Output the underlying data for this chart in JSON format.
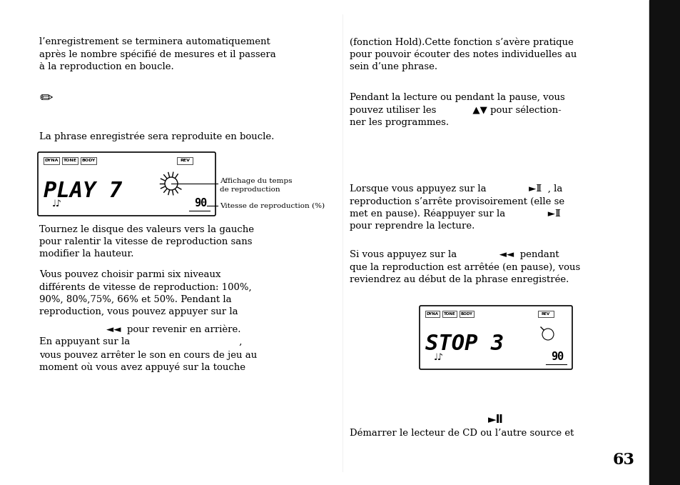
{
  "bg_color": "#ffffff",
  "text_color": "#000000",
  "page_number": "63",
  "sidebar_color": "#111111",
  "figsize": [
    9.54,
    6.79
  ],
  "dpi": 100,
  "left_para1": "l’enregistrement se terminera automatiquement\naprès le nombre spécifié de mesures et il passera\nà la reproduction en boucle.",
  "left_para2": "La phrase enregistrée sera reproduite en boucle.",
  "left_para3a": "Tournez le disque des valeurs vers la gauche\npour ralentir la vitesse de reproduction sans\nmodifier la hauteur.",
  "left_para3b": "Vous pouvez choisir parmi six niveaux\ndifférents de vitesse de reproduction: 100%,\n90%, 80%,75%, 66% et 50%. Pendant la\nreproduction, vous pouvez appuyer sur la",
  "left_para3c": "        ◄◄  pour revenir en arrière.",
  "left_para3d": "En appuyant sur la                                    ,",
  "left_para3e": "vous pouvez arrêter le son en cours de jeu au\nmoment où vous avez appuyé sur la touche",
  "right_para1": "(fonction Hold).Cette fonction s’avère pratique\npour pouvoir écouter des notes individuelles au\nsein d’une phrase.",
  "right_para2": "Pendant la lecture ou pendant la pause, vous\npouvez utiliser les            ▲▼ pour sélection-\nner les programmes.",
  "right_para3": "Lorsque vous appuyez sur la              ►Ⅱ  , la\nreproduction s’arrête provisoirement (elle se\nmet en pause). Réappuyer sur la              ►Ⅱ\npour reprendre la lecture.",
  "right_para4": "Si vous appuyez sur la              ◄◄  pendant\nque la reproduction est arrêtée (en pause), vous\nreviendrez au début de la phrase enregistrée.",
  "right_para5": "►Ⅱ",
  "right_para6": "Démarrer le lecteur de CD ou l’autre source et",
  "ann1a": "Affichage du temps",
  "ann1b": "de reproduction",
  "ann2": "Vitesse de reproduction (%)",
  "display1_tags_left": [
    "DYNA",
    "TONE",
    "BODY"
  ],
  "display1_tag_right": "REV",
  "display1_main": "PLAY 7",
  "display1_knob": true,
  "display2_tags_left": [
    "DYNA",
    "TONE",
    "BODY"
  ],
  "display2_tag_right": "REV",
  "display2_main": "STOP 3",
  "display2_knob": true,
  "body_fontsize": 9.5,
  "small_fontsize": 7.5
}
